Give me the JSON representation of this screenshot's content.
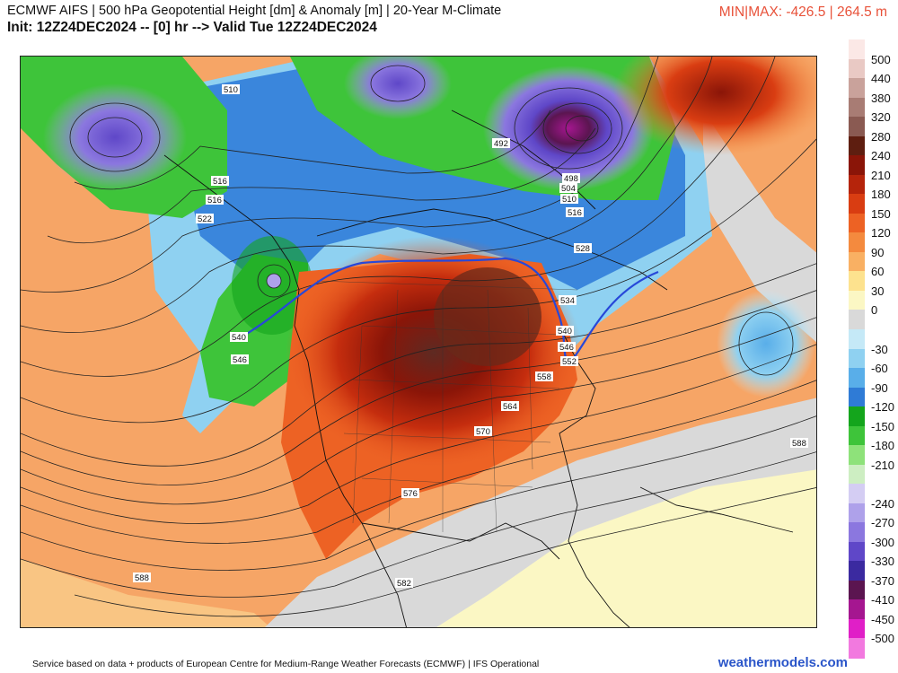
{
  "header": {
    "title": "ECMWF AIFS | 500 hPa Geopotential Height [dm] & Anomaly [m] | 20-Year M-Climate",
    "subtitle": "Init: 12Z24DEC2024 -- [0] hr --> Valid Tue 12Z24DEC2024",
    "minmax": "MIN|MAX: -426.5 | 264.5 m"
  },
  "colorbar": {
    "levels": [
      {
        "label": "500",
        "color": "#fbe8e6"
      },
      {
        "label": "440",
        "color": "#e9c9c4"
      },
      {
        "label": "380",
        "color": "#c9a29b"
      },
      {
        "label": "320",
        "color": "#a87c74"
      },
      {
        "label": "280",
        "color": "#8a5a52"
      },
      {
        "label": "240",
        "color": "#5e1e10"
      },
      {
        "label": "210",
        "color": "#8a1508"
      },
      {
        "label": "180",
        "color": "#b5240b"
      },
      {
        "label": "150",
        "color": "#d93d12"
      },
      {
        "label": "120",
        "color": "#ed6224"
      },
      {
        "label": "90",
        "color": "#f48a3e"
      },
      {
        "label": "60",
        "color": "#f9b063"
      },
      {
        "label": "30",
        "color": "#fde28e"
      },
      {
        "label": "0",
        "color": "#fbf7c4"
      },
      {
        "label": "",
        "color": "#d9d9d9"
      },
      {
        "label": "-30",
        "color": "#c5e9f7"
      },
      {
        "label": "-60",
        "color": "#8fd1f1"
      },
      {
        "label": "-90",
        "color": "#59aee9"
      },
      {
        "label": "-120",
        "color": "#2f7bd6"
      },
      {
        "label": "-150",
        "color": "#14a51c"
      },
      {
        "label": "-180",
        "color": "#3ec43a"
      },
      {
        "label": "-210",
        "color": "#8ee27a"
      },
      {
        "label": "",
        "color": "#cdeec2"
      },
      {
        "label": "-240",
        "color": "#d4cdf3"
      },
      {
        "label": "-270",
        "color": "#aea1ea"
      },
      {
        "label": "-300",
        "color": "#8b77df"
      },
      {
        "label": "-330",
        "color": "#5f47c8"
      },
      {
        "label": "-370",
        "color": "#3b2aa0"
      },
      {
        "label": "-410",
        "color": "#5b1550"
      },
      {
        "label": "-450",
        "color": "#a51690"
      },
      {
        "label": "-500",
        "color": "#e01fc7"
      },
      {
        "label": "",
        "color": "#f279df"
      }
    ]
  },
  "map": {
    "contour_labels": [
      "510",
      "516",
      "516",
      "522",
      "492",
      "498",
      "504",
      "510",
      "516",
      "528",
      "534",
      "540",
      "540",
      "546",
      "546",
      "552",
      "558",
      "564",
      "570",
      "576",
      "582",
      "588",
      "588"
    ],
    "colors": {
      "ocean_warm": "#f6a566",
      "land_hot": "#b5240b",
      "core": "#6a2a1a",
      "cold_green": "#3ec43a",
      "cold_blue": "#3a86dc",
      "cold_purple": "#8b77df",
      "neutral": "#d9d9d9",
      "light_yellow": "#fbf7c4",
      "contour": "#222222",
      "highlight_contour": "#2748d9"
    }
  },
  "footer": {
    "credit": "Service based on data + products of European Centre for Medium-Range Weather Forecasts (ECMWF) | IFS Operational",
    "brand": "weathermodels.com"
  }
}
